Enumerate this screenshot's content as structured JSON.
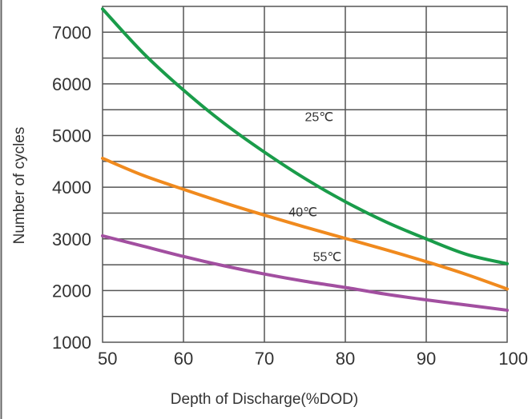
{
  "chart_data": {
    "type": "line",
    "xlabel": "Depth of Discharge(%DOD)",
    "ylabel": "Number of cycles",
    "xlim": [
      50,
      100
    ],
    "ylim": [
      1000,
      7500
    ],
    "x_ticks": [
      50,
      60,
      70,
      80,
      90,
      100
    ],
    "y_ticks": [
      1000,
      2000,
      3000,
      4000,
      5000,
      6000,
      7000
    ],
    "x_tick_labels": [
      "50",
      "60",
      "70",
      "80",
      "90",
      "100"
    ],
    "y_tick_labels": [
      "1000",
      "2000",
      "3000",
      "4000",
      "5000",
      "6000",
      "7000"
    ],
    "grid": true,
    "series": [
      {
        "name": "25℃",
        "color": "#1a9c4a",
        "x": [
          50,
          55,
          60,
          65,
          70,
          75,
          80,
          85,
          90,
          95,
          100
        ],
        "values": [
          7450,
          6600,
          5880,
          5240,
          4680,
          4170,
          3720,
          3330,
          3000,
          2700,
          2520
        ]
      },
      {
        "name": "40℃",
        "color": "#f08a1e",
        "x": [
          50,
          55,
          60,
          65,
          70,
          75,
          80,
          85,
          90,
          95,
          100
        ],
        "values": [
          4560,
          4230,
          3960,
          3700,
          3460,
          3230,
          3010,
          2790,
          2560,
          2310,
          2030
        ]
      },
      {
        "name": "55℃",
        "color": "#a24fa0",
        "x": [
          50,
          55,
          60,
          65,
          70,
          75,
          80,
          85,
          90,
          95,
          100
        ],
        "values": [
          3060,
          2860,
          2660,
          2480,
          2320,
          2180,
          2060,
          1930,
          1820,
          1720,
          1620
        ]
      }
    ]
  }
}
